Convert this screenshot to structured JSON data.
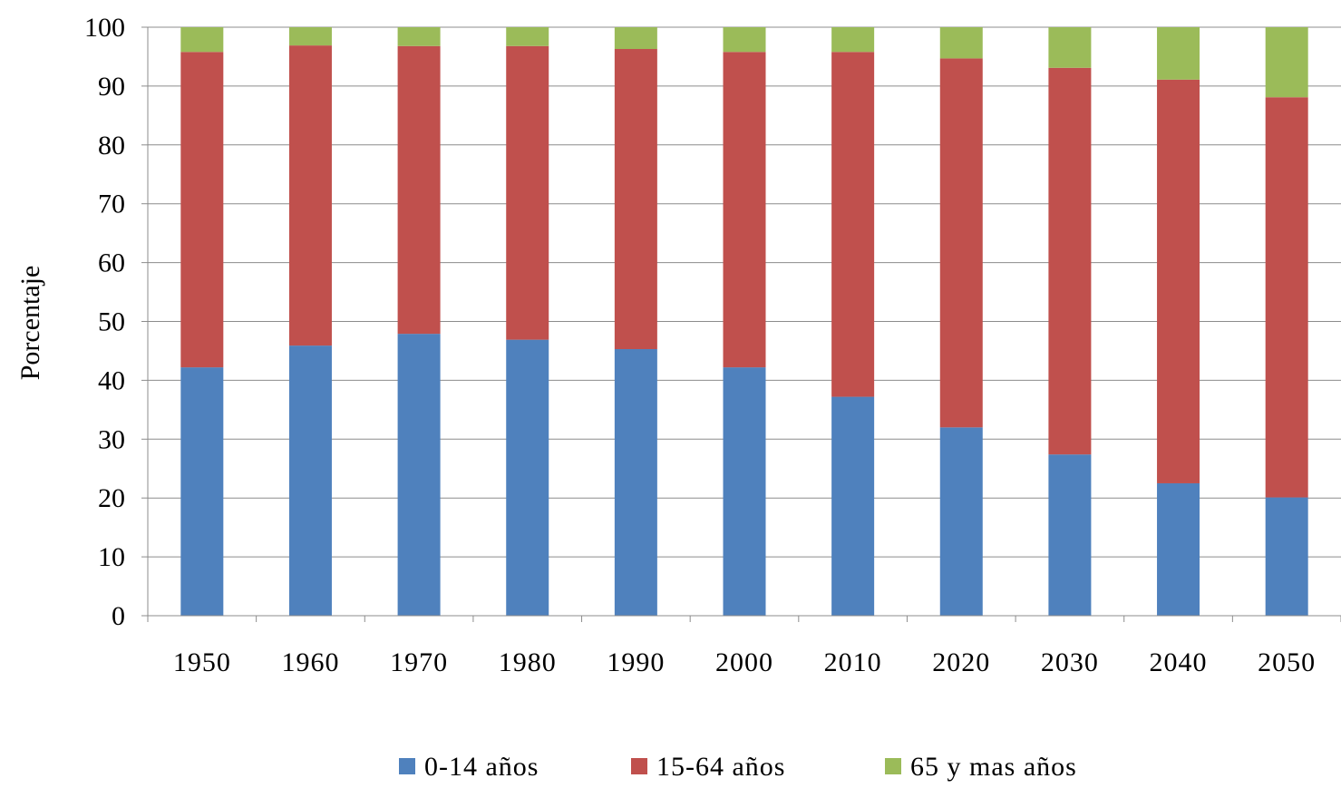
{
  "chart_data": {
    "type": "bar",
    "stacked": true,
    "title": "",
    "xlabel": "",
    "ylabel": "Porcentaje",
    "ylim": [
      0,
      100
    ],
    "yticks": [
      0,
      10,
      20,
      30,
      40,
      50,
      60,
      70,
      80,
      90,
      100
    ],
    "grid": "horizontal",
    "legend_position": "bottom",
    "categories": [
      "1950",
      "1960",
      "1970",
      "1980",
      "1990",
      "2000",
      "2010",
      "2020",
      "2030",
      "2040",
      "2050"
    ],
    "series": [
      {
        "name": "0-14 años",
        "color": "#4F81BD",
        "values": [
          42.2,
          45.9,
          47.9,
          46.9,
          45.3,
          42.2,
          37.2,
          32.0,
          27.4,
          22.5,
          20.1
        ]
      },
      {
        "name": "15-64 años",
        "color": "#C0504D",
        "values": [
          53.6,
          51.0,
          48.9,
          49.9,
          51.0,
          53.6,
          58.6,
          62.7,
          65.7,
          68.6,
          68.0
        ]
      },
      {
        "name": "65 y mas años",
        "color": "#9BBB59",
        "values": [
          4.2,
          3.1,
          3.2,
          3.2,
          3.7,
          4.2,
          4.2,
          5.3,
          6.9,
          8.9,
          11.9
        ]
      }
    ]
  }
}
